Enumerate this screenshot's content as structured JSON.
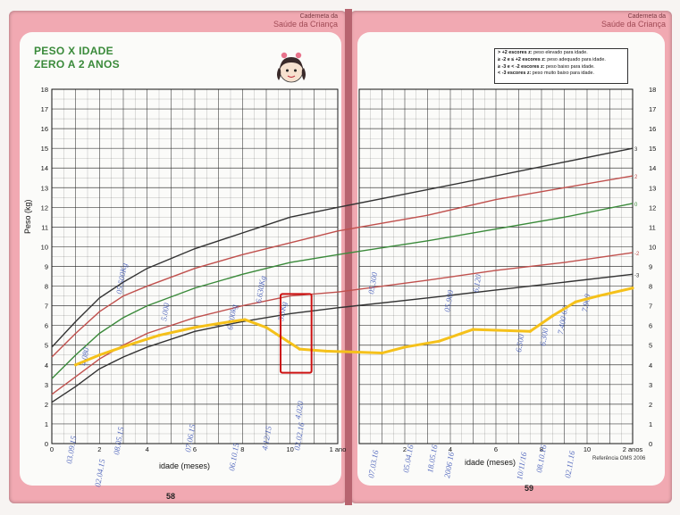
{
  "brand": {
    "line1": "Caderneta da",
    "line2": "Saúde da Criança"
  },
  "title": {
    "line1": "PESO X IDADE",
    "line2": "ZERO A 2 ANOS"
  },
  "legend": [
    {
      "key": "> +2 escores z:",
      "text": " peso elevado para idade."
    },
    {
      "key": "≥ -2 e ≤ +2 escores z:",
      "text": " peso adequado para idade."
    },
    {
      "key": "≥ -3 e < -2 escores z:",
      "text": " peso baixo para idade."
    },
    {
      "key": "< -3 escores z:",
      "text": " peso muito baixo para idade."
    }
  ],
  "axis": {
    "ylabel": "Peso (kg)",
    "xlabel_left": "idade (meses)",
    "xlabel_right": "idade (meses)",
    "one_year": "1 ano",
    "two_years": "2 anos"
  },
  "reference": "Referência OMS 2006",
  "page_numbers": {
    "left": "58",
    "right": "59"
  },
  "colors": {
    "p3": "#333333",
    "p2": "#c0504d",
    "p0": "#3a8a3a",
    "m2": "#c0504d",
    "m3": "#333333",
    "child": "#f5c11a",
    "highlight": "#cc1111",
    "ink": "#3a53b5",
    "grid": "#2b2b2b"
  },
  "chart_data": {
    "type": "line",
    "x_unit": "months",
    "y_unit": "kg",
    "xlim": [
      0,
      24
    ],
    "ylim": [
      0,
      18
    ],
    "x_ticks_left": [
      "0",
      "2",
      "4",
      "6",
      "8",
      "10",
      "1 ano"
    ],
    "x_ticks_right": [
      "2",
      "4",
      "6",
      "8",
      "10",
      "2 anos"
    ],
    "y_ticks": [
      "0",
      "1",
      "2",
      "3",
      "4",
      "5",
      "6",
      "7",
      "8",
      "9",
      "10",
      "11",
      "12",
      "13",
      "14",
      "15",
      "16",
      "17",
      "18"
    ],
    "curve_labels": [
      "3",
      "2",
      "0",
      "-2",
      "-3"
    ],
    "series": [
      {
        "name": "3",
        "x": [
          0,
          1,
          2,
          3,
          4,
          6,
          8,
          10,
          12,
          15,
          18,
          21,
          24
        ],
        "values": [
          4.9,
          6.2,
          7.4,
          8.2,
          8.9,
          9.9,
          10.7,
          11.5,
          12.0,
          12.9,
          13.6,
          14.3,
          15.0
        ]
      },
      {
        "name": "2",
        "x": [
          0,
          1,
          2,
          3,
          4,
          6,
          8,
          10,
          12,
          15,
          18,
          21,
          24
        ],
        "values": [
          4.4,
          5.6,
          6.7,
          7.5,
          8.0,
          8.9,
          9.6,
          10.2,
          10.8,
          11.6,
          12.4,
          13.0,
          13.6
        ]
      },
      {
        "name": "0",
        "x": [
          0,
          1,
          2,
          3,
          4,
          6,
          8,
          10,
          12,
          15,
          18,
          21,
          24
        ],
        "values": [
          3.3,
          4.5,
          5.6,
          6.4,
          7.0,
          7.9,
          8.6,
          9.2,
          9.6,
          10.3,
          10.9,
          11.5,
          12.2
        ]
      },
      {
        "name": "-2",
        "x": [
          0,
          1,
          2,
          3,
          4,
          6,
          8,
          10,
          12,
          15,
          18,
          21,
          24
        ],
        "values": [
          2.5,
          3.4,
          4.3,
          5.0,
          5.6,
          6.4,
          7.0,
          7.5,
          7.7,
          8.3,
          8.8,
          9.2,
          9.7
        ]
      },
      {
        "name": "-3",
        "x": [
          0,
          1,
          2,
          3,
          4,
          6,
          8,
          10,
          12,
          15,
          18,
          21,
          24
        ],
        "values": [
          2.1,
          2.9,
          3.8,
          4.4,
          4.9,
          5.7,
          6.2,
          6.6,
          6.9,
          7.4,
          7.8,
          8.2,
          8.6
        ]
      }
    ],
    "child_curve": {
      "x": [
        1.0,
        2.0,
        3.2,
        4.5,
        6.0,
        7.0,
        8.1,
        9.0,
        10.4,
        11.5,
        13.0,
        14.0,
        15.5,
        17.0,
        19.5,
        20.5,
        21.5,
        22.5,
        24.0
      ],
      "values": [
        4.0,
        4.5,
        5.0,
        5.5,
        5.9,
        6.1,
        6.3,
        5.9,
        4.8,
        4.7,
        4.6,
        4.9,
        5.2,
        5.8,
        5.7,
        6.5,
        7.2,
        7.5,
        7.9
      ]
    },
    "highlight_box": {
      "x": [
        9.6,
        10.9
      ],
      "y": [
        3.6,
        7.6
      ]
    },
    "annotations_left": [
      "03.09.15",
      "02.04.15",
      "08.05.15",
      "07.06.15",
      "06.10.15",
      "4/12/15",
      "02.02.16",
      "4,080",
      "05.500Kg",
      "5.000",
      "6.300kg",
      "6.630Kg",
      "5.3Kg",
      "4,020"
    ],
    "annotations_right": [
      "07.03.16",
      "05.04.16",
      "18.05.16",
      "2006 16",
      "10/11/16",
      "08.10.16",
      "02.11.16",
      "05.300",
      "05.900",
      "6,120",
      "6.500",
      "6.300",
      "7.400 69",
      "7.900"
    ]
  }
}
